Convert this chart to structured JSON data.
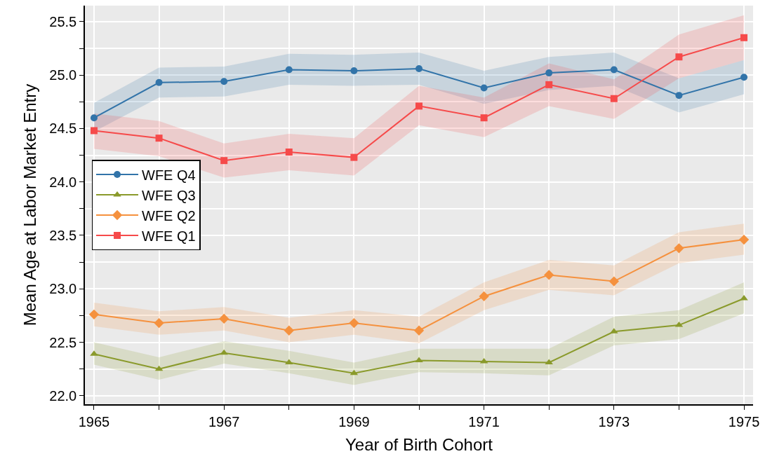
{
  "chart_data": {
    "type": "line",
    "xlabel": "Year of Birth Cohort",
    "ylabel": "Mean Age at Labor Market Entry",
    "x": [
      1965,
      1966,
      1967,
      1968,
      1969,
      1970,
      1971,
      1972,
      1973,
      1974,
      1975
    ],
    "series": [
      {
        "name": "WFE Q4",
        "color": "#3274a9",
        "marker": "circle",
        "values": [
          24.6,
          24.93,
          24.94,
          25.05,
          25.04,
          25.06,
          24.88,
          25.02,
          25.05,
          24.81,
          24.98
        ],
        "lower": [
          24.47,
          24.79,
          24.8,
          24.91,
          24.9,
          24.91,
          24.73,
          24.86,
          24.9,
          24.65,
          24.82
        ],
        "upper": [
          24.74,
          25.07,
          25.08,
          25.2,
          25.19,
          25.21,
          25.04,
          25.17,
          25.21,
          24.97,
          25.14
        ]
      },
      {
        "name": "WFE Q3",
        "color": "#8a9a2b",
        "marker": "triangle",
        "values": [
          22.39,
          22.25,
          22.4,
          22.31,
          22.21,
          22.33,
          22.32,
          22.31,
          22.6,
          22.66,
          22.91
        ],
        "lower": [
          22.29,
          22.15,
          22.3,
          22.21,
          22.1,
          22.22,
          22.21,
          22.19,
          22.47,
          22.53,
          22.77
        ],
        "upper": [
          22.5,
          22.36,
          22.51,
          22.42,
          22.31,
          22.44,
          22.44,
          22.44,
          22.74,
          22.8,
          23.06
        ]
      },
      {
        "name": "WFE Q2",
        "color": "#f5913e",
        "marker": "diamond",
        "values": [
          22.76,
          22.68,
          22.72,
          22.61,
          22.68,
          22.61,
          22.93,
          23.13,
          23.07,
          23.38,
          23.46
        ],
        "lower": [
          22.65,
          22.57,
          22.61,
          22.5,
          22.57,
          22.49,
          22.8,
          22.99,
          22.94,
          23.24,
          23.32
        ],
        "upper": [
          22.87,
          22.79,
          22.83,
          22.73,
          22.8,
          22.74,
          23.06,
          23.27,
          23.22,
          23.53,
          23.61
        ]
      },
      {
        "name": "WFE Q1",
        "color": "#f64a4a",
        "marker": "square",
        "values": [
          24.48,
          24.41,
          24.2,
          24.28,
          24.23,
          24.71,
          24.6,
          24.91,
          24.78,
          25.17,
          25.35
        ],
        "lower": [
          24.31,
          24.24,
          24.04,
          24.11,
          24.06,
          24.53,
          24.42,
          24.71,
          24.59,
          24.97,
          25.14
        ],
        "upper": [
          24.64,
          24.57,
          24.36,
          24.45,
          24.41,
          24.9,
          24.79,
          25.11,
          24.96,
          25.38,
          25.56
        ]
      }
    ],
    "xlim": [
      1964.86,
      1975.14
    ],
    "xticks": [
      1965,
      {
        "value": 1966,
        "label": null
      },
      1967,
      {
        "value": 1968,
        "label": null
      },
      1969,
      {
        "value": 1970,
        "label": null
      },
      1971,
      {
        "value": 1972,
        "label": null
      },
      1973,
      {
        "value": 1974,
        "label": null
      },
      1975
    ],
    "ylim": [
      21.92,
      25.65
    ],
    "yticks": [
      {
        "value": 22,
        "label": "22.0"
      },
      {
        "value": 22.25,
        "label": null
      },
      22.5,
      {
        "value": 22.75,
        "label": null
      },
      {
        "value": 23,
        "label": "23.0"
      },
      {
        "value": 23.25,
        "label": null
      },
      23.5,
      {
        "value": 23.75,
        "label": null
      },
      {
        "value": 24,
        "label": "24.0"
      },
      {
        "value": 24.25,
        "label": null
      },
      24.5,
      {
        "value": 24.75,
        "label": null
      },
      {
        "value": 25,
        "label": "25.0"
      },
      {
        "value": 25.25,
        "label": null
      },
      25.5
    ],
    "grid": true,
    "legend": "left",
    "line_style": "solid"
  }
}
